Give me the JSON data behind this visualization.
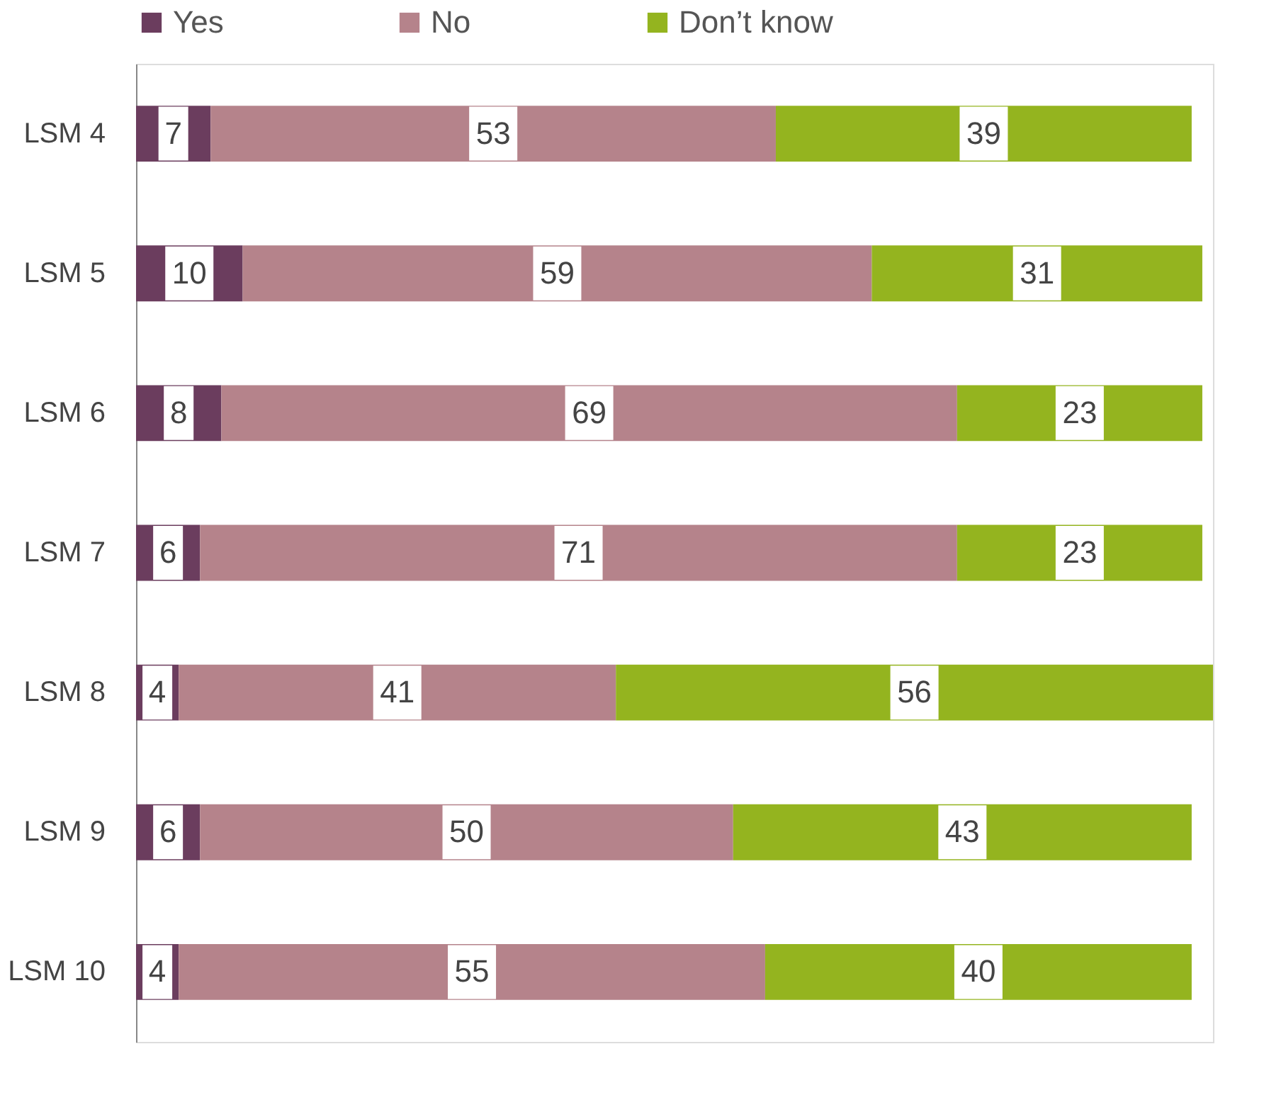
{
  "chart_data": {
    "type": "bar",
    "orientation": "horizontal",
    "stacked": true,
    "data_labels": true,
    "legend": "top",
    "grid": false,
    "tick_labels": "y",
    "categories": [
      "LSM 4",
      "LSM 5",
      "LSM 6",
      "LSM 7",
      "LSM 8",
      "LSM 9",
      "LSM 10"
    ],
    "series": [
      {
        "name": "Yes",
        "color": "#6b3d5e",
        "values": [
          7,
          10,
          8,
          6,
          4,
          6,
          4
        ]
      },
      {
        "name": "No",
        "color": "#b5838b",
        "values": [
          53,
          59,
          69,
          71,
          41,
          50,
          55
        ]
      },
      {
        "name": "Don’t know",
        "color": "#94b41f",
        "values": [
          39,
          31,
          23,
          23,
          56,
          43,
          40
        ]
      }
    ]
  }
}
